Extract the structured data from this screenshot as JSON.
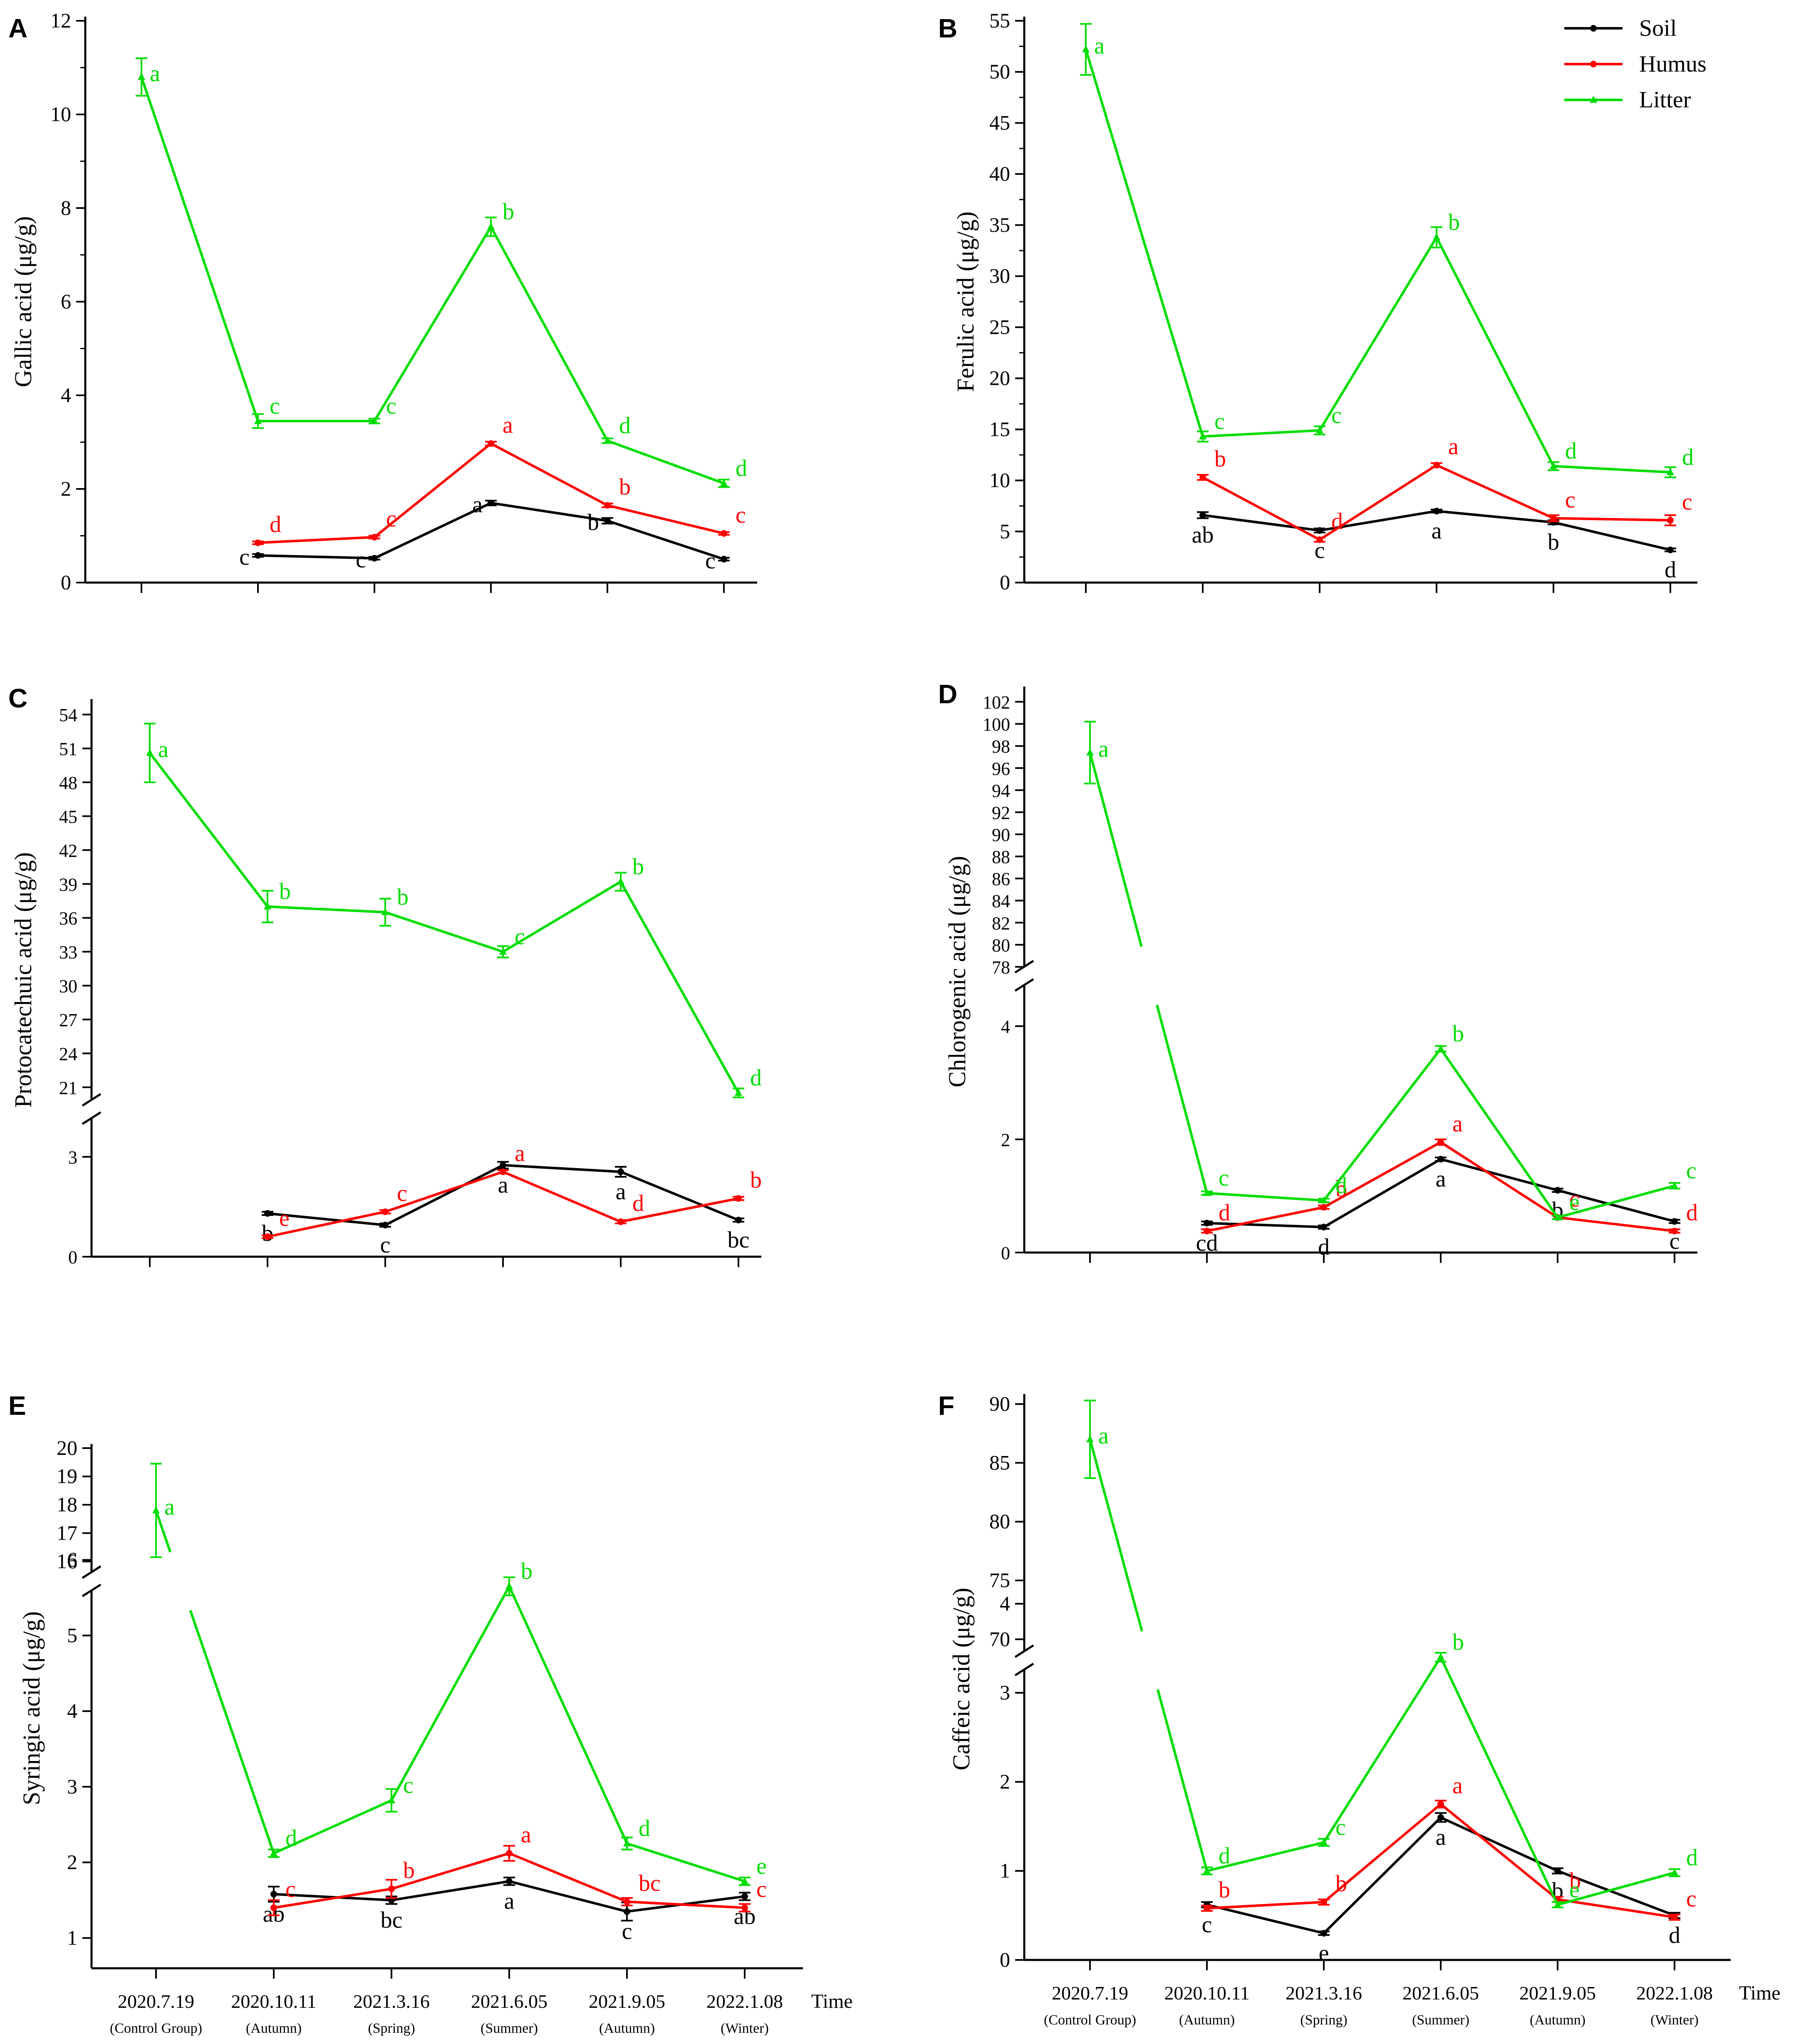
{
  "colors": {
    "soil": "#000000",
    "humus": "#ff0000",
    "litter": "#00dd00"
  },
  "legend": [
    "Soil",
    "Humus",
    "Litter"
  ],
  "x_axis_title": "Time",
  "x_tick_labels": [
    {
      "date": "2020.7.19",
      "note": "(Control Group)"
    },
    {
      "date": "2020.10.11",
      "note": "(Autumn)"
    },
    {
      "date": "2021.3.16",
      "note": "(Spring)"
    },
    {
      "date": "2021.6.05",
      "note": "(Summer)"
    },
    {
      "date": "2021.9.05",
      "note": "(Autumn)"
    },
    {
      "date": "2022.1.08",
      "note": "(Winter)"
    }
  ],
  "chart_data": [
    {
      "panel": "A",
      "type": "line",
      "ylabel": "Gallic acid (μg/g)",
      "ylim": [
        0,
        12
      ],
      "yticks": [
        0,
        2,
        4,
        6,
        8,
        10,
        12
      ],
      "series": [
        {
          "name": "Soil",
          "values": [
            null,
            0.58,
            0.52,
            1.7,
            1.32,
            0.5
          ],
          "err": [
            0,
            0.03,
            0.03,
            0.05,
            0.06,
            0.03
          ],
          "letters": [
            "",
            "c",
            "c",
            "a",
            "b",
            "c"
          ]
        },
        {
          "name": "Humus",
          "values": [
            null,
            0.85,
            0.97,
            2.97,
            1.65,
            1.05
          ],
          "err": [
            0,
            0.03,
            0.03,
            0.04,
            0.04,
            0.03
          ],
          "letters": [
            "",
            "d",
            "c",
            "a",
            "b",
            "c"
          ]
        },
        {
          "name": "Litter",
          "values": [
            10.8,
            3.45,
            3.45,
            7.6,
            3.03,
            2.12
          ],
          "err": [
            0.4,
            0.15,
            0.05,
            0.2,
            0.05,
            0.08
          ],
          "letters": [
            "a",
            "c",
            "c",
            "b",
            "d",
            "d"
          ]
        }
      ]
    },
    {
      "panel": "B",
      "type": "line",
      "ylabel": "Ferulic acid (μg/g)",
      "ylim": [
        0,
        55
      ],
      "yticks": [
        0,
        5,
        10,
        15,
        20,
        25,
        30,
        35,
        40,
        45,
        50,
        55
      ],
      "series": [
        {
          "name": "Soil",
          "values": [
            null,
            6.6,
            5.1,
            7.0,
            5.9,
            3.2
          ],
          "err": [
            0,
            0.3,
            0.2,
            0.15,
            0.2,
            0.15
          ],
          "letters": [
            "",
            "ab",
            "c",
            "a",
            "b",
            "d"
          ]
        },
        {
          "name": "Humus",
          "values": [
            null,
            10.3,
            4.2,
            11.5,
            6.3,
            6.1
          ],
          "err": [
            0,
            0.25,
            0.2,
            0.2,
            0.3,
            0.5
          ],
          "letters": [
            "",
            "b",
            "d",
            "a",
            "c",
            "c"
          ]
        },
        {
          "name": "Litter",
          "values": [
            52.2,
            14.3,
            14.9,
            33.8,
            11.4,
            10.8
          ],
          "err": [
            2.5,
            0.5,
            0.4,
            1.0,
            0.4,
            0.5
          ],
          "letters": [
            "a",
            "c",
            "c",
            "b",
            "d",
            "d"
          ]
        }
      ]
    },
    {
      "panel": "C",
      "type": "line",
      "ylabel": "Protocatechuic acid (μg/g)",
      "lower_range": [
        0,
        4
      ],
      "upper_range": [
        20,
        55
      ],
      "lower_ticks": [
        0,
        3
      ],
      "upper_ticks": [
        21,
        24,
        27,
        30,
        33,
        36,
        39,
        42,
        45,
        48,
        51,
        54
      ],
      "series": [
        {
          "name": "Soil",
          "values": [
            null,
            1.3,
            0.95,
            2.75,
            2.55,
            1.1
          ],
          "err": [
            0,
            0.05,
            0.05,
            0.1,
            0.15,
            0.05
          ],
          "letters": [
            "",
            "b",
            "c",
            "a",
            "a",
            "bc"
          ]
        },
        {
          "name": "Humus",
          "values": [
            null,
            0.6,
            1.35,
            2.55,
            1.05,
            1.75
          ],
          "err": [
            0,
            0.04,
            0.05,
            0.05,
            0.05,
            0.05
          ],
          "letters": [
            "",
            "e",
            "c",
            "a",
            "d",
            "b"
          ]
        },
        {
          "name": "Litter",
          "values": [
            50.6,
            37.0,
            36.5,
            33.0,
            39.2,
            20.5
          ],
          "err": [
            2.6,
            1.4,
            1.2,
            0.5,
            0.8,
            0.4
          ],
          "letters": [
            "a",
            "b",
            "b",
            "c",
            "b",
            "d"
          ]
        }
      ]
    },
    {
      "panel": "D",
      "type": "line",
      "ylabel": "Chlorogenic acid (μg/g)",
      "lower_range": [
        0,
        5
      ],
      "upper_range": [
        77,
        103
      ],
      "lower_ticks": [
        0,
        2,
        4
      ],
      "upper_ticks": [
        78,
        80,
        82,
        84,
        86,
        88,
        90,
        92,
        94,
        96,
        98,
        100,
        102
      ],
      "series": [
        {
          "name": "Soil",
          "values": [
            null,
            0.52,
            0.45,
            1.65,
            1.1,
            0.55
          ],
          "err": [
            0,
            0.03,
            0.03,
            0.03,
            0.03,
            0.03
          ],
          "letters": [
            "",
            "cd",
            "d",
            "a",
            "b",
            "c"
          ]
        },
        {
          "name": "Humus",
          "values": [
            null,
            0.38,
            0.8,
            1.95,
            0.62,
            0.38
          ],
          "err": [
            0,
            0.03,
            0.03,
            0.05,
            0.03,
            0.03
          ],
          "letters": [
            "",
            "d",
            "b",
            "a",
            "c",
            "d"
          ]
        },
        {
          "name": "Litter",
          "values": [
            97.4,
            1.05,
            0.92,
            3.6,
            0.62,
            1.18
          ],
          "err": [
            2.8,
            0.03,
            0.03,
            0.05,
            0.03,
            0.05
          ],
          "letters": [
            "a",
            "c",
            "d",
            "b",
            "e",
            "c"
          ]
        }
      ]
    },
    {
      "panel": "E",
      "type": "line",
      "ylabel": "Syringic acid (μg/g)",
      "lower_range": [
        0.6,
        6.9
      ],
      "upper_range": [
        15.3,
        20
      ],
      "lower_ticks": [
        1,
        2,
        3,
        4,
        5,
        6
      ],
      "upper_ticks": [
        16,
        17,
        18,
        19,
        20
      ],
      "series": [
        {
          "name": "Soil",
          "values": [
            null,
            1.58,
            1.5,
            1.75,
            1.35,
            1.55
          ],
          "err": [
            0,
            0.1,
            0.05,
            0.05,
            0.12,
            0.05
          ],
          "letters": [
            "",
            "ab",
            "bc",
            "a",
            "c",
            "ab"
          ]
        },
        {
          "name": "Humus",
          "values": [
            null,
            1.4,
            1.65,
            2.12,
            1.48,
            1.4
          ],
          "err": [
            0,
            0.1,
            0.12,
            0.1,
            0.05,
            0.05
          ],
          "letters": [
            "",
            "c",
            "b",
            "a",
            "bc",
            "c"
          ]
        },
        {
          "name": "Litter",
          "values": [
            17.8,
            2.12,
            2.82,
            5.65,
            2.25,
            1.75
          ],
          "err": [
            1.65,
            0.05,
            0.15,
            0.12,
            0.08,
            0.05
          ],
          "letters": [
            "a",
            "d",
            "c",
            "b",
            "d",
            "e"
          ]
        }
      ]
    },
    {
      "panel": "F",
      "type": "line",
      "ylabel": "Caffeic acid (μg/g)",
      "lower_range": [
        0,
        5
      ],
      "upper_range": [
        67.5,
        90.5
      ],
      "lower_ticks": [
        0,
        1,
        2,
        3,
        4
      ],
      "upper_ticks": [
        70,
        75,
        80,
        85,
        90
      ],
      "series": [
        {
          "name": "Soil",
          "values": [
            null,
            0.62,
            0.3,
            1.6,
            1.0,
            0.5
          ],
          "err": [
            0,
            0.03,
            0.02,
            0.05,
            0.03,
            0.03
          ],
          "letters": [
            "",
            "c",
            "e",
            "a",
            "b",
            "d"
          ]
        },
        {
          "name": "Humus",
          "values": [
            null,
            0.58,
            0.65,
            1.75,
            0.68,
            0.48
          ],
          "err": [
            0,
            0.03,
            0.03,
            0.04,
            0.03,
            0.03
          ],
          "letters": [
            "",
            "b",
            "b",
            "a",
            "b",
            "c"
          ]
        },
        {
          "name": "Litter",
          "values": [
            87.0,
            1.0,
            1.32,
            3.4,
            0.62,
            0.98
          ],
          "err": [
            3.3,
            0.04,
            0.04,
            0.05,
            0.03,
            0.04
          ],
          "letters": [
            "a",
            "d",
            "c",
            "b",
            "e",
            "d"
          ]
        }
      ]
    }
  ]
}
